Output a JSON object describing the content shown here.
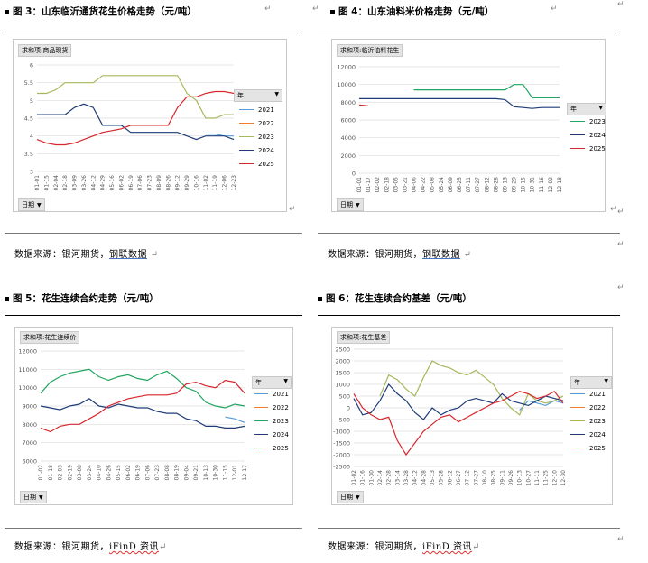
{
  "fig3": {
    "title": "图 3：山东临沂通货花生价格走势（元/吨）",
    "pivot": "求和项:商品现货",
    "x_button": "日期",
    "legend_button": "年",
    "source": "数据来源：银河期货，",
    "source_link": "钢联数据",
    "chart_data": {
      "type": "line",
      "ylim": [
        3,
        6
      ],
      "yticks": [
        "3",
        "3.5",
        "4",
        "4.5",
        "5",
        "5.5",
        "6"
      ],
      "categories": [
        "01-01",
        "01-15",
        "02-04",
        "02-18",
        "03-09",
        "03-26",
        "04-12",
        "04-29",
        "05-16",
        "06-02",
        "06-19",
        "07-06",
        "07-23",
        "08-09",
        "08-26",
        "09-12",
        "09-29",
        "10-16",
        "11-02",
        "11-19",
        "12-06",
        "12-23"
      ],
      "series": [
        {
          "name": "2021",
          "color": "#5b9bd5",
          "values": [
            null,
            null,
            null,
            null,
            null,
            null,
            null,
            null,
            null,
            null,
            null,
            null,
            null,
            null,
            null,
            null,
            null,
            null,
            4.05,
            4.05,
            4.0,
            4.0
          ]
        },
        {
          "name": "2022",
          "color": "#ed7d31",
          "values": [
            null,
            null,
            null,
            null,
            null,
            null,
            null,
            null,
            null,
            null,
            null,
            null,
            null,
            null,
            null,
            null,
            null,
            null,
            null,
            null,
            null,
            null
          ]
        },
        {
          "name": "2023",
          "color": "#a5b85c",
          "values": [
            5.2,
            5.2,
            5.3,
            5.5,
            5.5,
            5.5,
            5.5,
            5.7,
            5.7,
            5.7,
            5.7,
            5.7,
            5.7,
            5.7,
            5.7,
            5.7,
            5.2,
            5.0,
            4.5,
            4.5,
            4.6,
            4.6
          ]
        },
        {
          "name": "2024",
          "color": "#1f3c78",
          "values": [
            4.6,
            4.6,
            4.6,
            4.6,
            4.8,
            4.9,
            4.8,
            4.3,
            4.3,
            4.3,
            4.1,
            4.1,
            4.1,
            4.1,
            4.1,
            4.1,
            4.0,
            3.9,
            4.0,
            4.0,
            4.0,
            3.9
          ]
        },
        {
          "name": "2025",
          "color": "#d7262d",
          "values": [
            3.9,
            3.8,
            3.75,
            3.75,
            3.8,
            3.9,
            4.0,
            4.1,
            4.15,
            4.2,
            4.3,
            4.3,
            4.3,
            4.3,
            4.3,
            4.8,
            5.1,
            5.1,
            5.2,
            5.25,
            5.25,
            5.2
          ]
        }
      ]
    }
  },
  "fig4": {
    "title": "图 4：山东油料米价格走势（元/吨）",
    "pivot": "求和项:临沂油料花生",
    "x_button": "日期",
    "legend_button": "年",
    "source": "数据来源：银河期货，",
    "source_link": "钢联数据",
    "chart_data": {
      "type": "line",
      "ylim": [
        0,
        12000
      ],
      "yticks": [
        "0",
        "2000",
        "4000",
        "6000",
        "8000",
        "10000",
        "12000"
      ],
      "categories": [
        "01-01",
        "01-17",
        "02-02",
        "02-18",
        "03-05",
        "03-21",
        "04-06",
        "04-22",
        "05-08",
        "05-24",
        "06-09",
        "06-25",
        "07-11",
        "07-27",
        "08-12",
        "08-28",
        "09-13",
        "09-29",
        "10-15",
        "10-31",
        "11-16",
        "12-02",
        "12-18"
      ],
      "series": [
        {
          "name": "2023",
          "color": "#21a560",
          "values": [
            null,
            null,
            null,
            null,
            null,
            null,
            9400,
            9400,
            9400,
            9400,
            9400,
            9400,
            9400,
            9400,
            9400,
            9400,
            9400,
            10000,
            10000,
            8500,
            8500,
            8500,
            8500
          ]
        },
        {
          "name": "2024",
          "color": "#1f3c78",
          "values": [
            8400,
            8400,
            8400,
            8400,
            8400,
            8400,
            8400,
            8400,
            8400,
            8400,
            8400,
            8400,
            8400,
            8400,
            8400,
            8400,
            8300,
            7500,
            7400,
            7300,
            7400,
            7400,
            7400
          ]
        },
        {
          "name": "2025",
          "color": "#d7262d",
          "values": [
            7700,
            7600,
            null,
            null,
            null,
            null,
            null,
            null,
            null,
            null,
            null,
            null,
            null,
            null,
            null,
            null,
            null,
            null,
            null,
            null,
            null,
            null,
            null
          ]
        }
      ]
    }
  },
  "fig5": {
    "title": "图 5：花生连续合约走势（元/吨）",
    "pivot": "求和项:花生连续价",
    "x_button": "日期",
    "legend_button": "年",
    "source": "数据来源：银河期货，",
    "source_link": "iFinD 资讯",
    "chart_data": {
      "type": "line",
      "ylim": [
        6000,
        12000
      ],
      "yticks": [
        "6000",
        "7000",
        "8000",
        "9000",
        "10000",
        "11000",
        "12000"
      ],
      "categories": [
        "01-02",
        "01-18",
        "02-03",
        "02-19",
        "03-08",
        "03-24",
        "04-10",
        "04-26",
        "05-15",
        "06-02",
        "06-19",
        "07-06",
        "07-23",
        "08-08",
        "08-19",
        "09-04",
        "09-21",
        "10-13",
        "10-30",
        "11-15",
        "12-01",
        "12-17"
      ],
      "series": [
        {
          "name": "2021",
          "color": "#5b9bd5",
          "values": [
            null,
            null,
            null,
            null,
            null,
            null,
            null,
            null,
            null,
            null,
            null,
            null,
            null,
            null,
            null,
            null,
            null,
            null,
            null,
            8400,
            8300,
            8100
          ]
        },
        {
          "name": "2022",
          "color": "#ed7d31",
          "values": [
            null,
            null,
            null,
            null,
            null,
            null,
            null,
            null,
            null,
            null,
            null,
            null,
            null,
            null,
            null,
            null,
            null,
            null,
            null,
            null,
            null,
            null
          ]
        },
        {
          "name": "2023",
          "color": "#21a560",
          "values": [
            9700,
            10300,
            10600,
            10800,
            10900,
            11000,
            10600,
            10400,
            10600,
            10700,
            10500,
            10400,
            10700,
            10900,
            10500,
            10000,
            9800,
            9200,
            9000,
            8900,
            9100,
            9000
          ]
        },
        {
          "name": "2024",
          "color": "#1f3c78",
          "values": [
            9000,
            8900,
            8800,
            9000,
            9100,
            9400,
            9000,
            8900,
            9100,
            9000,
            8900,
            8900,
            8700,
            8600,
            8600,
            8300,
            8200,
            7900,
            7900,
            7800,
            7800,
            7900
          ]
        },
        {
          "name": "2025",
          "color": "#d7262d",
          "values": [
            7800,
            7600,
            7900,
            8000,
            8000,
            8300,
            8600,
            9000,
            9200,
            9400,
            9500,
            9600,
            9600,
            9600,
            9700,
            10200,
            10300,
            10100,
            10000,
            10400,
            10300,
            9700
          ]
        }
      ]
    }
  },
  "fig6": {
    "title": "图 6：花生连续合约基差（元/吨）",
    "pivot": "求和项:花生基差",
    "x_button": "日期",
    "legend_button": "年",
    "source": "数据来源：银河期货，",
    "source_link": "iFinD 资讯",
    "chart_data": {
      "type": "line",
      "ylim": [
        -2500,
        2500
      ],
      "yticks": [
        "-2500",
        "-2000",
        "-1500",
        "-1000",
        "-500",
        "0",
        "500",
        "1000",
        "1500",
        "2000",
        "2500"
      ],
      "categories": [
        "01-02",
        "01-16",
        "01-30",
        "02-14",
        "02-28",
        "03-14",
        "03-28",
        "04-12",
        "04-28",
        "05-13",
        "05-28",
        "06-12",
        "06-27",
        "07-12",
        "07-27",
        "08-10",
        "08-25",
        "09-11",
        "09-26",
        "10-13",
        "10-27",
        "11-11",
        "11-25",
        "12-10",
        "12-30"
      ],
      "series": [
        {
          "name": "2021",
          "color": "#5b9bd5",
          "values": [
            null,
            null,
            null,
            null,
            null,
            null,
            null,
            null,
            null,
            null,
            null,
            null,
            null,
            null,
            null,
            null,
            null,
            null,
            null,
            -100,
            300,
            200,
            100,
            300,
            200
          ]
        },
        {
          "name": "2022",
          "color": "#ed7d31",
          "values": [
            null,
            null,
            null,
            null,
            null,
            null,
            null,
            null,
            null,
            null,
            null,
            null,
            null,
            null,
            null,
            null,
            null,
            null,
            null,
            null,
            null,
            null,
            null,
            null,
            null
          ]
        },
        {
          "name": "2023",
          "color": "#a5b85c",
          "values": [
            null,
            null,
            null,
            500,
            1400,
            1200,
            800,
            500,
            1300,
            2000,
            1800,
            1700,
            1500,
            1400,
            1600,
            1300,
            1000,
            400,
            0,
            -300,
            600,
            300,
            200,
            300,
            500
          ]
        },
        {
          "name": "2024",
          "color": "#1f3c78",
          "values": [
            400,
            -300,
            -200,
            300,
            1000,
            600,
            300,
            -200,
            -500,
            0,
            -300,
            -100,
            0,
            300,
            400,
            300,
            200,
            600,
            300,
            200,
            100,
            300,
            500,
            400,
            300
          ]
        },
        {
          "name": "2025",
          "color": "#d7262d",
          "values": [
            600,
            0,
            -300,
            -500,
            -400,
            -1400,
            -2000,
            -1500,
            -1000,
            -700,
            -400,
            -300,
            -600,
            -400,
            -200,
            0,
            200,
            300,
            500,
            700,
            600,
            400,
            500,
            700,
            200
          ]
        }
      ]
    }
  }
}
